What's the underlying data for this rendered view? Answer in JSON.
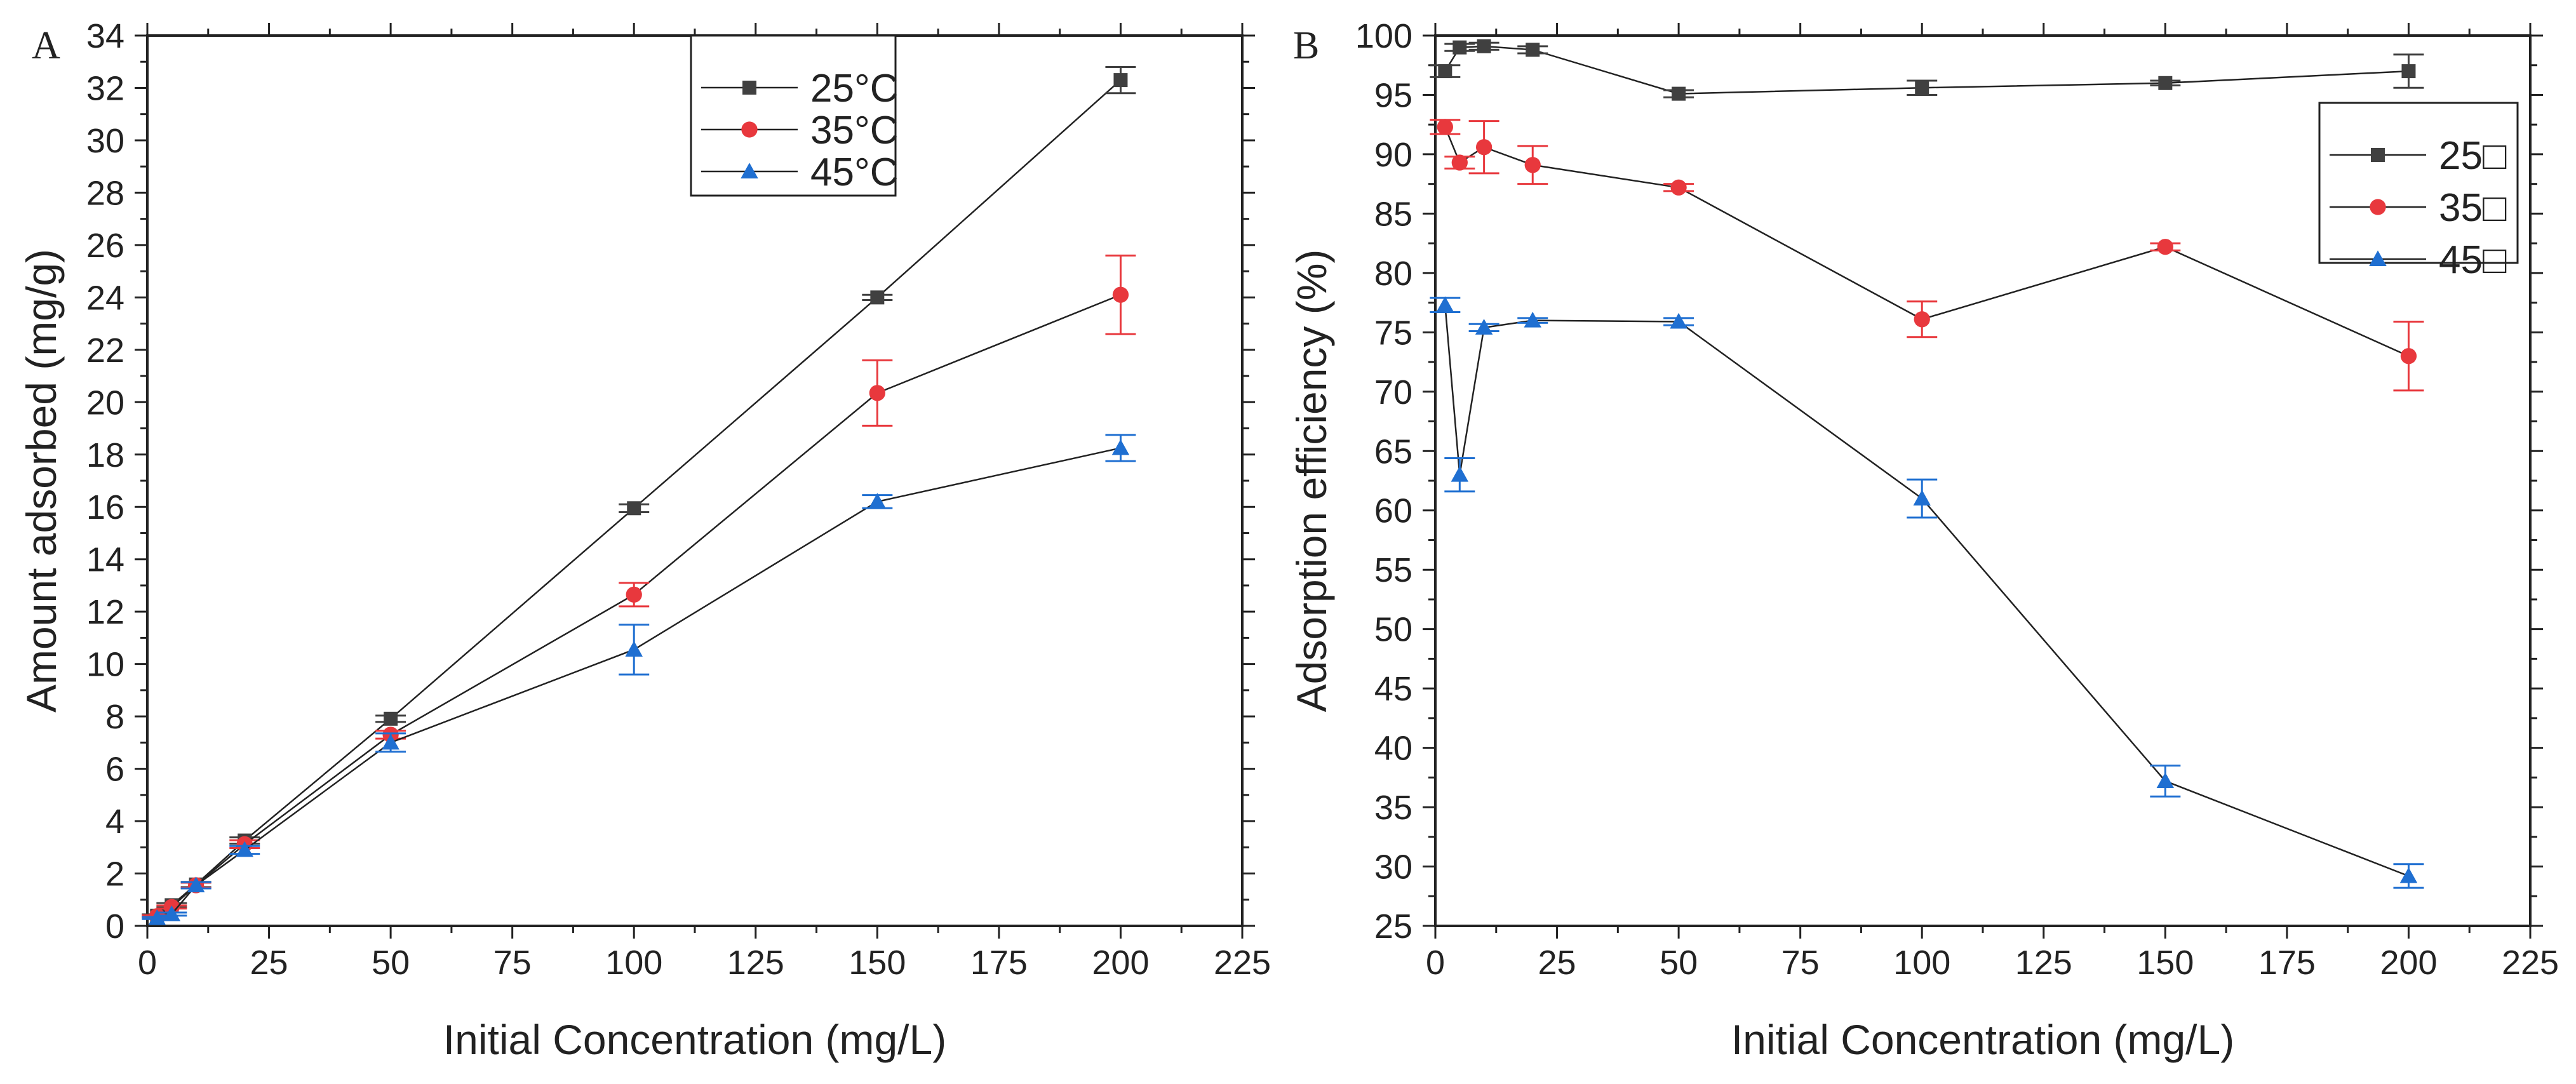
{
  "chart_data": [
    {
      "type": "line",
      "panel_label": "A",
      "title": "",
      "xlabel": "Initial Concentration (mg/L)",
      "ylabel": "Amount adsorbed (mg/g)",
      "xlim": [
        0,
        225
      ],
      "ylim": [
        0,
        34
      ],
      "x_ticks": [
        "0",
        "25",
        "50",
        "75",
        "100",
        "125",
        "150",
        "175",
        "200",
        "225"
      ],
      "y_ticks": [
        "0",
        "2",
        "4",
        "6",
        "8",
        "10",
        "12",
        "14",
        "16",
        "18",
        "20",
        "22",
        "24",
        "26",
        "28",
        "30",
        "32",
        "34"
      ],
      "grid": false,
      "legend_position": "top-center",
      "x": [
        2,
        5,
        10,
        20,
        50,
        100,
        150,
        200
      ],
      "series": [
        {
          "name": "25°C",
          "marker": "square",
          "color": "#404040",
          "error_color": "#404040",
          "values": [
            0.39,
            0.79,
            1.58,
            3.26,
            7.91,
            15.95,
            24.0,
            32.3
          ],
          "errors": [
            0.05,
            0.08,
            0.1,
            0.12,
            0.12,
            0.15,
            0.1,
            0.5
          ]
        },
        {
          "name": "35°C",
          "marker": "circle",
          "color": "#e8383d",
          "error_color": "#e8383d",
          "values": [
            0.37,
            0.72,
            1.55,
            3.12,
            7.3,
            12.65,
            20.35,
            24.1
          ],
          "errors": [
            0.04,
            0.06,
            0.1,
            0.15,
            0.15,
            0.45,
            1.25,
            1.5
          ]
        },
        {
          "name": "45°C",
          "marker": "triangle",
          "color": "#1f6fd1",
          "error_color": "#1f6fd1",
          "values": [
            0.3,
            0.45,
            1.55,
            2.9,
            7.0,
            10.55,
            16.2,
            18.25
          ],
          "errors": [
            0.04,
            0.06,
            0.12,
            0.15,
            0.35,
            0.95,
            0.25,
            0.5
          ]
        }
      ]
    },
    {
      "type": "line",
      "panel_label": "B",
      "title": "",
      "xlabel": "Initial Concentration (mg/L)",
      "ylabel": "Adsorption efficiency (%)",
      "xlim": [
        0,
        225
      ],
      "ylim": [
        25,
        100
      ],
      "x_ticks": [
        "0",
        "25",
        "50",
        "75",
        "100",
        "125",
        "150",
        "175",
        "200",
        "225"
      ],
      "y_ticks": [
        "25",
        "30",
        "35",
        "40",
        "45",
        "50",
        "55",
        "60",
        "65",
        "70",
        "75",
        "80",
        "85",
        "90",
        "95",
        "100"
      ],
      "grid": false,
      "legend_position": "top-right",
      "x": [
        2,
        5,
        10,
        20,
        50,
        100,
        150,
        200
      ],
      "series": [
        {
          "name": "25□",
          "marker": "square",
          "color": "#404040",
          "error_color": "#404040",
          "values": [
            97.0,
            99.0,
            99.1,
            98.8,
            95.1,
            95.6,
            96.0,
            97.0
          ],
          "errors": [
            0.5,
            0.3,
            0.3,
            0.3,
            0.3,
            0.6,
            0.2,
            1.4
          ]
        },
        {
          "name": "35□",
          "marker": "circle",
          "color": "#e8383d",
          "error_color": "#e8383d",
          "values": [
            92.3,
            89.3,
            90.6,
            89.1,
            87.2,
            76.1,
            82.2,
            73.0
          ],
          "errors": [
            0.6,
            0.5,
            2.2,
            1.6,
            0.3,
            1.5,
            0.3,
            2.9
          ]
        },
        {
          "name": "45□",
          "marker": "triangle",
          "color": "#1f6fd1",
          "error_color": "#1f6fd1",
          "values": [
            77.3,
            63.0,
            75.4,
            76.0,
            75.9,
            61.0,
            37.2,
            29.2
          ],
          "errors": [
            0.6,
            1.4,
            0.3,
            0.2,
            0.3,
            1.6,
            1.3,
            1.0
          ]
        }
      ]
    }
  ]
}
